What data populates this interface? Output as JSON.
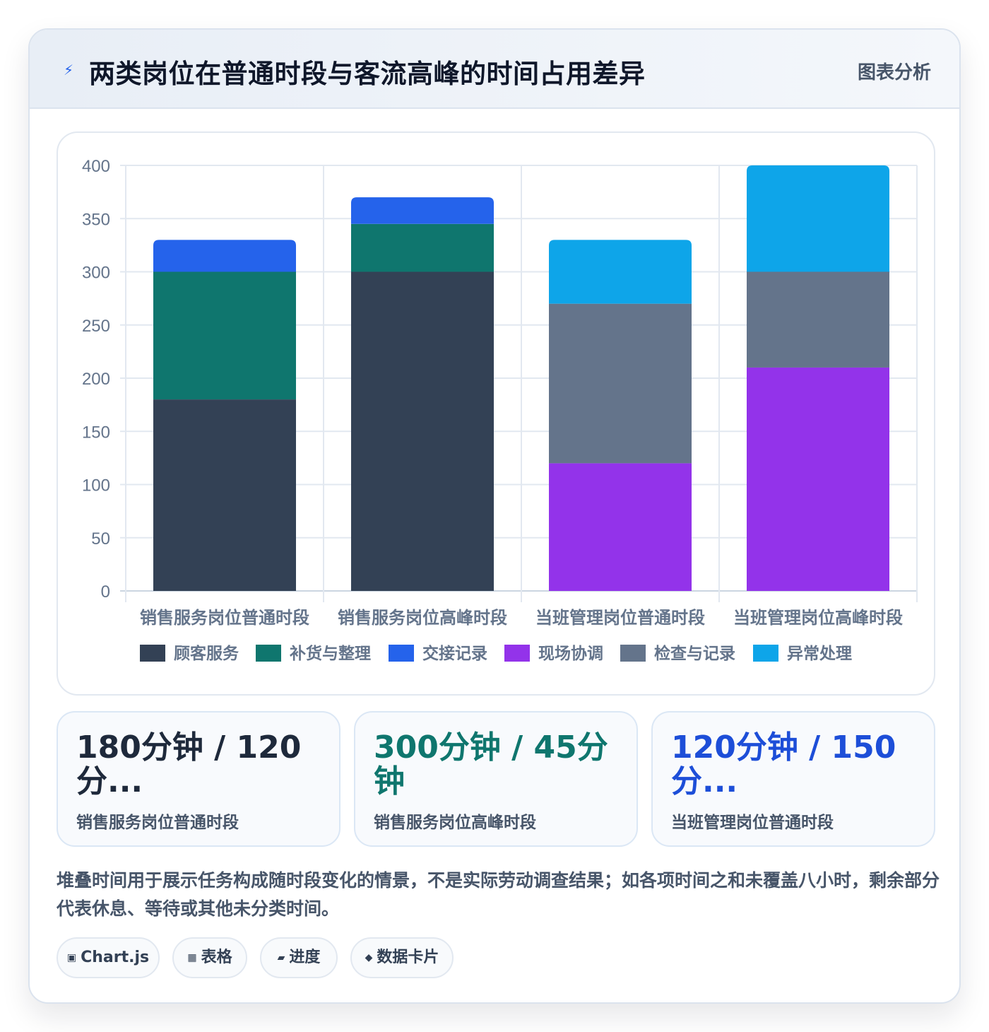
{
  "header": {
    "icon": "lightning-icon",
    "title": "两类岗位在普通时段与客流高峰的时间占用差异",
    "tag": "图表分析"
  },
  "chart_data": {
    "type": "bar",
    "stacked": true,
    "categories": [
      "销售服务岗位普通时段",
      "销售服务岗位高峰时段",
      "当班管理岗位普通时段",
      "当班管理岗位高峰时段"
    ],
    "series": [
      {
        "name": "顾客服务",
        "color": "#334155",
        "values": [
          180,
          300,
          0,
          0
        ]
      },
      {
        "name": "补货与整理",
        "color": "#0f766e",
        "values": [
          120,
          45,
          0,
          0
        ]
      },
      {
        "name": "交接记录",
        "color": "#2563eb",
        "values": [
          30,
          25,
          0,
          0
        ]
      },
      {
        "name": "现场协调",
        "color": "#9333ea",
        "values": [
          0,
          0,
          120,
          210
        ]
      },
      {
        "name": "检查与记录",
        "color": "#64748b",
        "values": [
          0,
          0,
          150,
          90
        ]
      },
      {
        "name": "异常处理",
        "color": "#0ea5e9",
        "values": [
          0,
          0,
          60,
          100
        ]
      }
    ],
    "ylim": [
      0,
      400
    ],
    "yticks": [
      "0",
      "50",
      "100",
      "150",
      "200",
      "250",
      "300",
      "350",
      "400"
    ],
    "grid": true,
    "legend": "bottom"
  },
  "stats": [
    {
      "value": "180分钟 / 120 分...",
      "label": "销售服务岗位普通时段",
      "color": "#1e293b"
    },
    {
      "value": "300分钟 / 45分钟",
      "label": "销售服务岗位高峰时段",
      "color": "#0f766e"
    },
    {
      "value": "120分钟 / 150 分...",
      "label": "当班管理岗位普通时段",
      "color": "#1d4ed8"
    }
  ],
  "footnote": "堆叠时间用于展示任务构成随时段变化的情景，不是实际劳动调查结果；如各项时间之和未覆盖八小时，剩余部分代表休息、等待或其他未分类时间。",
  "pills": [
    {
      "icon": "chart-icon",
      "glyph": "▣",
      "label": "Chart.js"
    },
    {
      "icon": "table-icon",
      "glyph": "▦",
      "label": "表格"
    },
    {
      "icon": "progress-icon",
      "glyph": "▰",
      "label": "进度"
    },
    {
      "icon": "card-icon",
      "glyph": "◆",
      "label": "数据卡片"
    }
  ]
}
